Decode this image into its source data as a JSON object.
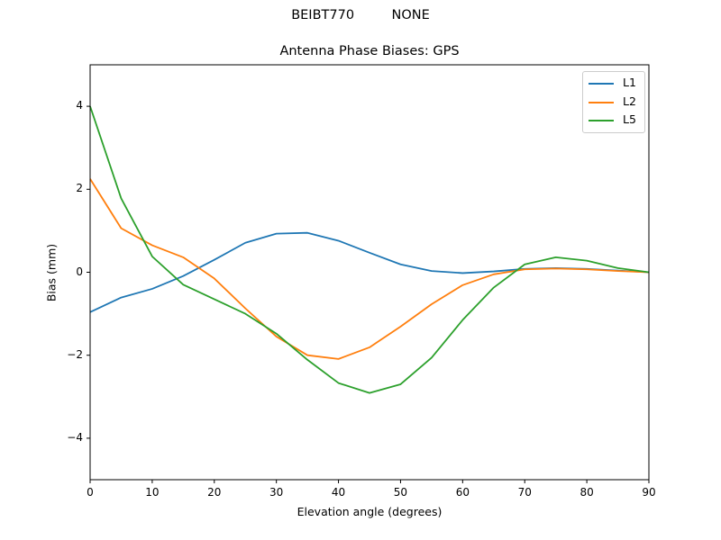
{
  "header": {
    "suptitle": "BEIBT770         NONE",
    "title": "Antenna Phase Biases: GPS"
  },
  "axes": {
    "xlabel": "Elevation angle (degrees)",
    "ylabel": "Bias (mm)",
    "xticks": [
      "0",
      "10",
      "20",
      "30",
      "40",
      "50",
      "60",
      "70",
      "80",
      "90"
    ],
    "yticks": [
      "4",
      "2",
      "0",
      "−2",
      "−4"
    ]
  },
  "legend": {
    "items": [
      {
        "label": "L1",
        "color": "#1f77b4"
      },
      {
        "label": "L2",
        "color": "#ff7f0e"
      },
      {
        "label": "L5",
        "color": "#2ca02c"
      }
    ]
  },
  "chart_data": {
    "type": "line",
    "title": "Antenna Phase Biases: GPS",
    "suptitle": "BEIBT770         NONE",
    "xlabel": "Elevation angle (degrees)",
    "ylabel": "Bias (mm)",
    "xlim": [
      0,
      90
    ],
    "ylim": [
      -5,
      5
    ],
    "grid": false,
    "legend_position": "upper right",
    "x": [
      0,
      5,
      10,
      15,
      20,
      25,
      30,
      35,
      40,
      45,
      50,
      55,
      60,
      65,
      70,
      75,
      80,
      85,
      90
    ],
    "series": [
      {
        "name": "L1",
        "color": "#1f77b4",
        "values": [
          -0.96,
          -0.61,
          -0.4,
          -0.09,
          0.3,
          0.71,
          0.93,
          0.95,
          0.76,
          0.47,
          0.19,
          0.03,
          -0.02,
          0.02,
          0.08,
          0.1,
          0.08,
          0.04,
          0.0
        ]
      },
      {
        "name": "L2",
        "color": "#ff7f0e",
        "values": [
          2.25,
          1.06,
          0.65,
          0.36,
          -0.15,
          -0.87,
          -1.55,
          -2.0,
          -2.09,
          -1.81,
          -1.31,
          -0.77,
          -0.31,
          -0.05,
          0.07,
          0.09,
          0.07,
          0.03,
          0.0
        ]
      },
      {
        "name": "L5",
        "color": "#2ca02c",
        "values": [
          4.0,
          1.78,
          0.38,
          -0.3,
          -0.65,
          -1.0,
          -1.48,
          -2.11,
          -2.67,
          -2.91,
          -2.7,
          -2.06,
          -1.15,
          -0.37,
          0.19,
          0.36,
          0.28,
          0.1,
          0.0
        ]
      }
    ]
  }
}
